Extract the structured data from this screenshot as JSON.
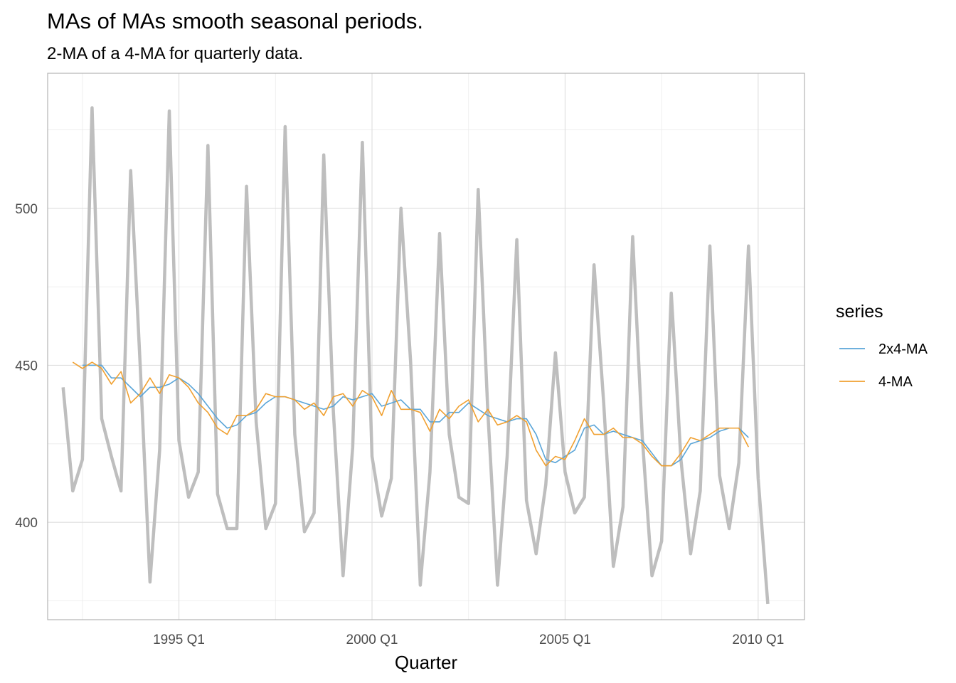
{
  "chart_data": {
    "type": "line",
    "title": "MAs of MAs smooth seasonal periods.",
    "subtitle": "2-MA of a 4-MA for quarterly data.",
    "xlabel": "Quarter",
    "ylabel": "",
    "x_tick_labels": [
      "1995 Q1",
      "2000 Q1",
      "2005 Q1",
      "2010 Q1"
    ],
    "x_tick_values": [
      1995.0,
      2000.0,
      2005.0,
      2010.0
    ],
    "y_ticks": [
      400,
      450,
      500
    ],
    "ylim": [
      369,
      543
    ],
    "xlim": [
      1991.6,
      2011.2
    ],
    "grid": true,
    "legend_position": "right",
    "legend_title": "series",
    "raw_series": {
      "color": "#bebebe",
      "start": 1992.0,
      "step": 0.25,
      "values": [
        443,
        410,
        420,
        532,
        433,
        421,
        410,
        512,
        449,
        381,
        423,
        531,
        426,
        408,
        416,
        520,
        409,
        398,
        398,
        507,
        432,
        398,
        406,
        526,
        428,
        397,
        403,
        517,
        435,
        383,
        424,
        521,
        421,
        402,
        414,
        500,
        451,
        380,
        416,
        492,
        428,
        408,
        406,
        506,
        435,
        380,
        421,
        490,
        407,
        390,
        412,
        454,
        416,
        403,
        408,
        482,
        438,
        386,
        405,
        491,
        427,
        383,
        394,
        473,
        420,
        390,
        410,
        488,
        415,
        398,
        419,
        488,
        414,
        374
      ]
    },
    "series": [
      {
        "name": "4-MA",
        "color": "#f0a030",
        "start": 1992.25,
        "step": 0.25,
        "values": [
          451,
          449,
          451,
          449,
          444,
          448,
          438,
          441,
          446,
          441,
          447,
          446,
          443,
          438,
          435,
          430,
          428,
          434,
          434,
          436,
          441,
          440,
          440,
          439,
          436,
          438,
          434,
          440,
          441,
          437,
          442,
          440,
          434,
          442,
          436,
          436,
          435,
          429,
          436,
          433,
          437,
          439,
          432,
          436,
          431,
          432,
          434,
          432,
          423,
          418,
          421,
          420,
          426,
          433,
          428,
          428,
          430,
          427,
          427,
          425,
          421,
          418,
          418,
          422,
          427,
          426,
          428,
          430,
          430,
          430,
          424
        ]
      },
      {
        "name": "2x4-MA",
        "color": "#5aa5d8",
        "start": 1992.5,
        "step": 0.25,
        "values": [
          450,
          450,
          450,
          446,
          446,
          443,
          440,
          443,
          443,
          444,
          446,
          444,
          441,
          437,
          433,
          430,
          431,
          434,
          435,
          438,
          440,
          440,
          439,
          438,
          437,
          436,
          437,
          440,
          439,
          440,
          441,
          437,
          438,
          439,
          436,
          436,
          432,
          432,
          435,
          435,
          438,
          436,
          434,
          433,
          432,
          433,
          433,
          428,
          420,
          419,
          421,
          423,
          430,
          431,
          428,
          429,
          428,
          427,
          426,
          422,
          418,
          418,
          420,
          425,
          426,
          427,
          429,
          430,
          430,
          427
        ]
      }
    ]
  }
}
